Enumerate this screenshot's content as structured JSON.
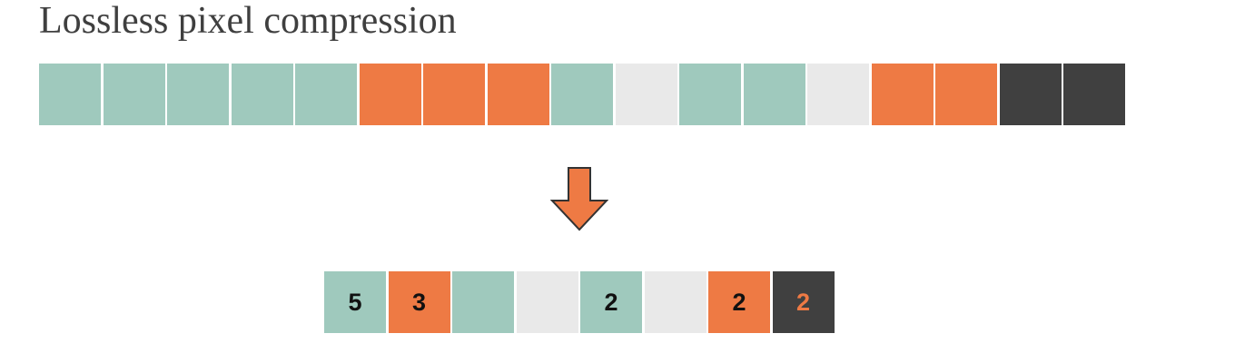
{
  "title": "Lossless pixel compression",
  "colors": {
    "teal": "#9fc9bd",
    "orange": "#ee7a44",
    "light": "#e9e9e9",
    "dark": "#404040",
    "arrow": "#ee7a44",
    "arrow_stroke": "#333333"
  },
  "input_pixels": [
    "teal",
    "teal",
    "teal",
    "teal",
    "teal",
    "orange",
    "orange",
    "orange",
    "teal",
    "light",
    "teal",
    "teal",
    "light",
    "orange",
    "orange",
    "dark",
    "dark"
  ],
  "arrow_icon": "down-arrow-icon",
  "compressed_pixels": [
    {
      "color": "teal",
      "count": "5"
    },
    {
      "color": "orange",
      "count": "3"
    },
    {
      "color": "teal",
      "count": ""
    },
    {
      "color": "light",
      "count": ""
    },
    {
      "color": "teal",
      "count": "2"
    },
    {
      "color": "light",
      "count": ""
    },
    {
      "color": "orange",
      "count": "2"
    },
    {
      "color": "dark",
      "count": "2"
    }
  ]
}
